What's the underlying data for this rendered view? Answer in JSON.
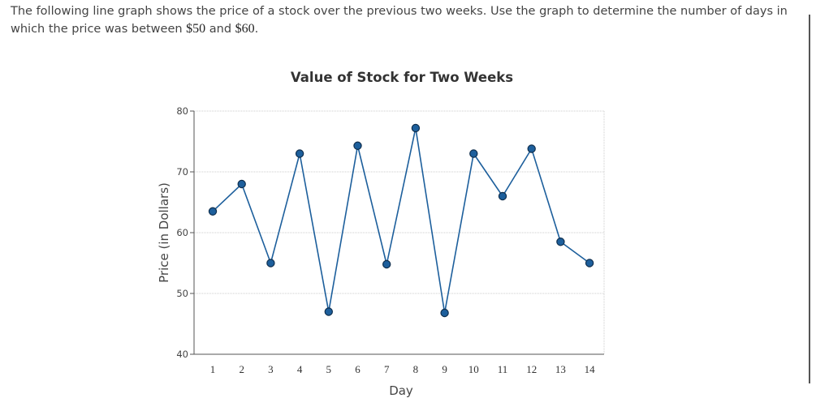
{
  "question": {
    "part1": "The following line graph shows the price of a stock over the previous two weeks. Use the graph to determine the number of days in which the price was between ",
    "money1": "$50",
    "part2": " and ",
    "money2": "$60",
    "part3": "."
  },
  "colors": {
    "line": "#1d5f9c",
    "marker": "#1d5f9c",
    "grid": "#cccccc",
    "axis": "#555555"
  },
  "chart_data": {
    "type": "line",
    "title": "Value of Stock for Two Weeks",
    "xlabel": "Day",
    "ylabel": "Price (in Dollars)",
    "x": [
      1,
      2,
      3,
      4,
      5,
      6,
      7,
      8,
      9,
      10,
      11,
      12,
      13,
      14
    ],
    "series": [
      {
        "values": [
          63.5,
          68,
          55,
          73,
          47,
          74.3,
          54.8,
          77.2,
          46.8,
          73,
          66,
          73.8,
          58.5,
          55
        ]
      }
    ],
    "xticks": [
      "1",
      "2",
      "3",
      "4",
      "5",
      "6",
      "7",
      "8",
      "9",
      "10",
      "11",
      "12",
      "13",
      "14"
    ],
    "yticks": [
      "40",
      "50",
      "60",
      "70",
      "80"
    ],
    "ylim": [
      40,
      80
    ],
    "grid": true,
    "markers": true
  }
}
